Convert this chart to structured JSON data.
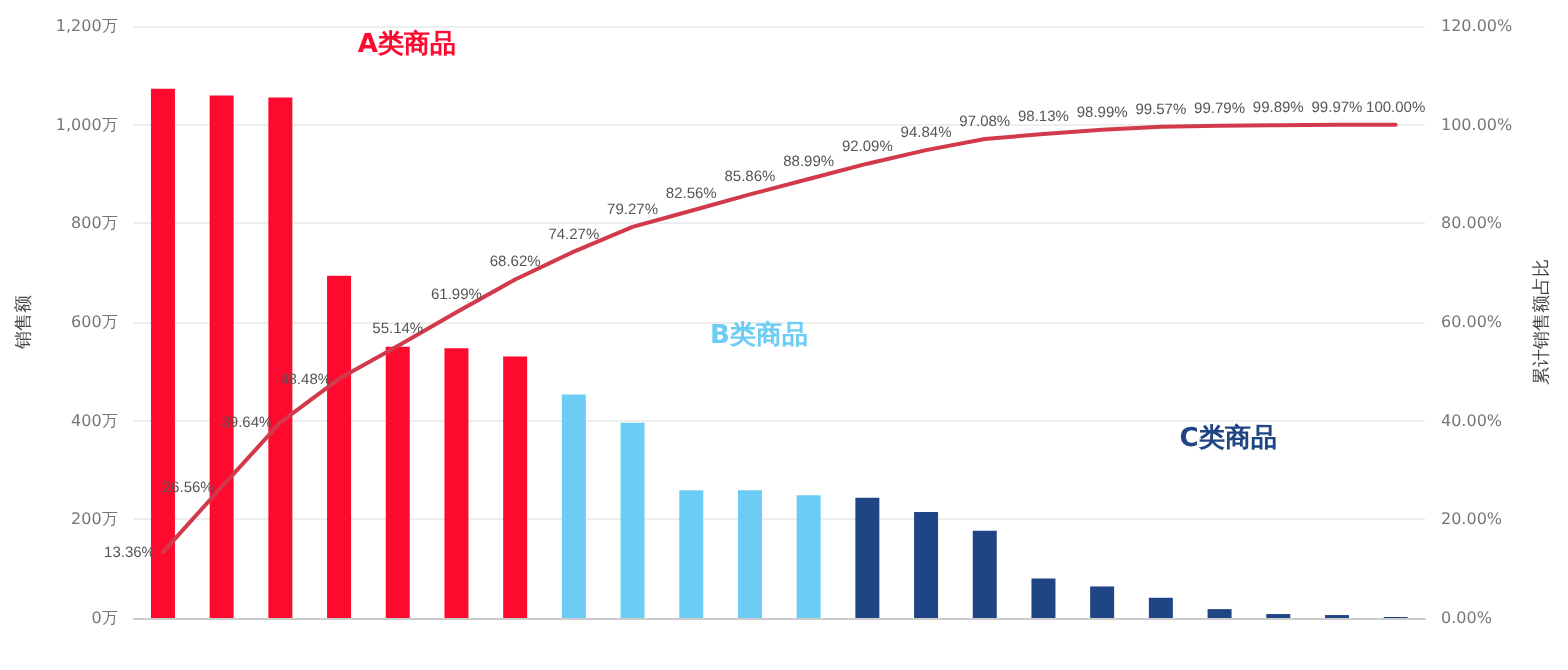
{
  "chart_data": {
    "type": "bar",
    "ylabel": "销售额",
    "y2label": "累计销售额占比",
    "categories": [
      null,
      null,
      null,
      null,
      null,
      null,
      null,
      null,
      null,
      null,
      null,
      null,
      null,
      null,
      null,
      null,
      null,
      null,
      null,
      null,
      null,
      null
    ],
    "stacked": true,
    "series": [
      {
        "name": "A类商品",
        "color": "#ff0a2f",
        "values": [
          1073,
          1059,
          1055,
          694,
          550,
          547,
          530,
          null,
          null,
          null,
          null,
          null,
          null,
          null,
          null,
          null,
          null,
          null,
          null,
          null,
          null,
          null
        ]
      },
      {
        "name": "B类商品",
        "color": "#6ccdf4",
        "values": [
          null,
          null,
          null,
          null,
          null,
          null,
          null,
          453,
          396,
          259,
          259,
          249,
          null,
          null,
          null,
          null,
          null,
          null,
          null,
          null,
          null,
          null
        ]
      },
      {
        "name": "C类商品",
        "color": "#1f4585",
        "values": [
          null,
          null,
          null,
          null,
          null,
          null,
          null,
          null,
          null,
          null,
          null,
          null,
          244,
          215,
          177,
          80,
          64,
          41,
          18,
          8,
          6,
          2
        ]
      },
      {
        "type": "line",
        "axis": "y2",
        "color": "#d23a4c",
        "marker": "none",
        "values": [
          13.36,
          26.56,
          39.64,
          48.48,
          55.14,
          61.99,
          68.62,
          74.27,
          79.27,
          82.56,
          85.86,
          88.99,
          92.09,
          94.84,
          97.08,
          98.13,
          98.99,
          99.57,
          99.79,
          99.89,
          99.97,
          100
        ],
        "value_labels": [
          "13.36%",
          "26.56%",
          "39.64%",
          "48.48%",
          "55.14%",
          "61.99%",
          "68.62%",
          "74.27%",
          "79.27%",
          "82.56%",
          "85.86%",
          "88.99%",
          "92.09%",
          "94.84%",
          "97.08%",
          "98.13%",
          "98.99%",
          "99.57%",
          "99.79%",
          "99.89%",
          "99.97%",
          "100.00%"
        ]
      }
    ],
    "ylim": [
      0,
      1200
    ],
    "yticks": [
      {
        "value": 0,
        "label": "0万"
      },
      {
        "value": 200,
        "label": "200万"
      },
      {
        "value": 400,
        "label": "400万"
      },
      {
        "value": 600,
        "label": "600万"
      },
      {
        "value": 800,
        "label": "800万"
      },
      {
        "value": 1000,
        "label": "1,000万"
      },
      {
        "value": 1200,
        "label": "1,200万"
      }
    ],
    "y2lim": [
      0,
      120
    ],
    "y2ticks": [
      {
        "value": 0,
        "label": "0.00%"
      },
      {
        "value": 20,
        "label": "20.00%"
      },
      {
        "value": 40,
        "label": "40.00%"
      },
      {
        "value": 60,
        "label": "60.00%"
      },
      {
        "value": 80,
        "label": "80.00%"
      },
      {
        "value": 100,
        "label": "100.00%"
      },
      {
        "value": 120,
        "label": "120.00%"
      }
    ],
    "grid": "y",
    "legend": false
  }
}
